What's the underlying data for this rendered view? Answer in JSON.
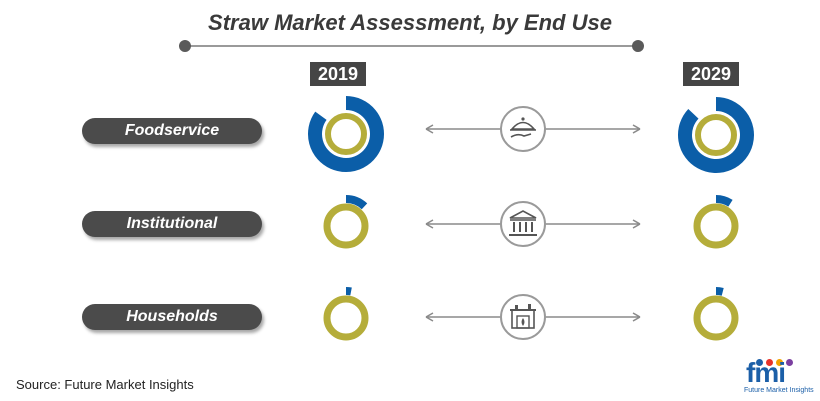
{
  "title": "Straw Market Assessment, by End Use",
  "years": [
    "2019",
    "2029"
  ],
  "source": "Source: Future Market Insights",
  "logo": {
    "mark": "fmi",
    "tagline": "Future Market Insights"
  },
  "colors": {
    "ring": "#b5ad3a",
    "share": "#0b5ea8",
    "label_bg": "#4b4b4b",
    "badge_bg": "#454545"
  },
  "rows": [
    {
      "label": "Foodservice",
      "icon": "food-cloche-icon"
    },
    {
      "label": "Institutional",
      "icon": "institution-building-icon"
    },
    {
      "label": "Households",
      "icon": "fireplace-home-icon"
    }
  ],
  "chart_data": {
    "type": "pie",
    "categories": [
      "Foodservice",
      "Institutional",
      "Households"
    ],
    "series": [
      {
        "name": "2019",
        "values": [
          85,
          12,
          3
        ]
      },
      {
        "name": "2029",
        "values": [
          87,
          9,
          4
        ]
      }
    ]
  }
}
